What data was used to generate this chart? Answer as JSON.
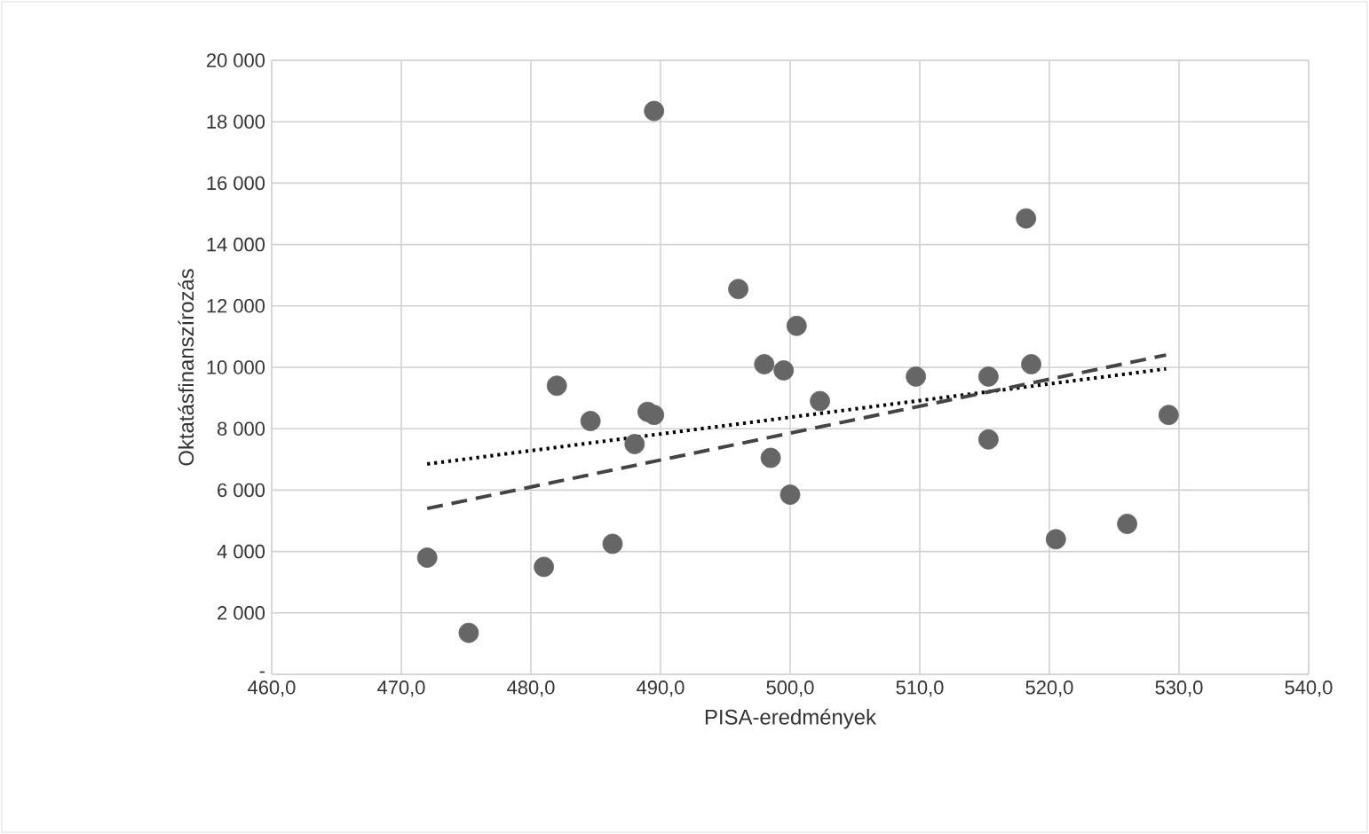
{
  "chart_data": {
    "type": "scatter",
    "xlabel": "PISA-eredmények",
    "ylabel": "Oktatásfinanszírozás",
    "xlim": [
      460,
      540
    ],
    "xticks": [
      {
        "value": 460,
        "label": "460,0"
      },
      {
        "value": 470,
        "label": "470,0"
      },
      {
        "value": 480,
        "label": "480,0"
      },
      {
        "value": 490,
        "label": "490,0"
      },
      {
        "value": 500,
        "label": "500,0"
      },
      {
        "value": 510,
        "label": "510,0"
      },
      {
        "value": 520,
        "label": "520,0"
      },
      {
        "value": 530,
        "label": "530,0"
      },
      {
        "value": 540,
        "label": "540,0"
      }
    ],
    "ylim": [
      0,
      20000
    ],
    "yticks": [
      {
        "value": 0,
        "label": "-"
      },
      {
        "value": 2000,
        "label": "2 000"
      },
      {
        "value": 4000,
        "label": "4 000"
      },
      {
        "value": 6000,
        "label": "6 000"
      },
      {
        "value": 8000,
        "label": "8 000"
      },
      {
        "value": 10000,
        "label": "10 000"
      },
      {
        "value": 12000,
        "label": "12 000"
      },
      {
        "value": 14000,
        "label": "14 000"
      },
      {
        "value": 16000,
        "label": "16 000"
      },
      {
        "value": 18000,
        "label": "18 000"
      },
      {
        "value": 20000,
        "label": "20 000"
      }
    ],
    "grid": true,
    "series": [
      {
        "color": "#666666",
        "marker": "circle",
        "x": [
          472,
          475.2,
          481,
          482,
          484.6,
          486.3,
          488,
          489,
          489.5,
          489.5,
          496,
          498,
          498.5,
          499.5,
          500,
          500.5,
          502.3,
          509.7,
          515.3,
          515.3,
          518.2,
          518.6,
          520.5,
          526,
          529.2
        ],
        "values": [
          3800,
          1350,
          3500,
          9400,
          8250,
          4250,
          7500,
          8550,
          8450,
          18350,
          12550,
          10100,
          7050,
          9900,
          5850,
          11350,
          8900,
          9700,
          9700,
          7650,
          14850,
          10100,
          4400,
          4900,
          8450
        ]
      },
      {
        "type": "line",
        "color": "#000000",
        "line_style": "dotted",
        "x": [
          472,
          529
        ],
        "values": [
          6850,
          9950
        ]
      },
      {
        "type": "line",
        "color": "#444444",
        "line_style": "dashed",
        "x": [
          472,
          529
        ],
        "values": [
          5400,
          10400
        ]
      }
    ]
  }
}
